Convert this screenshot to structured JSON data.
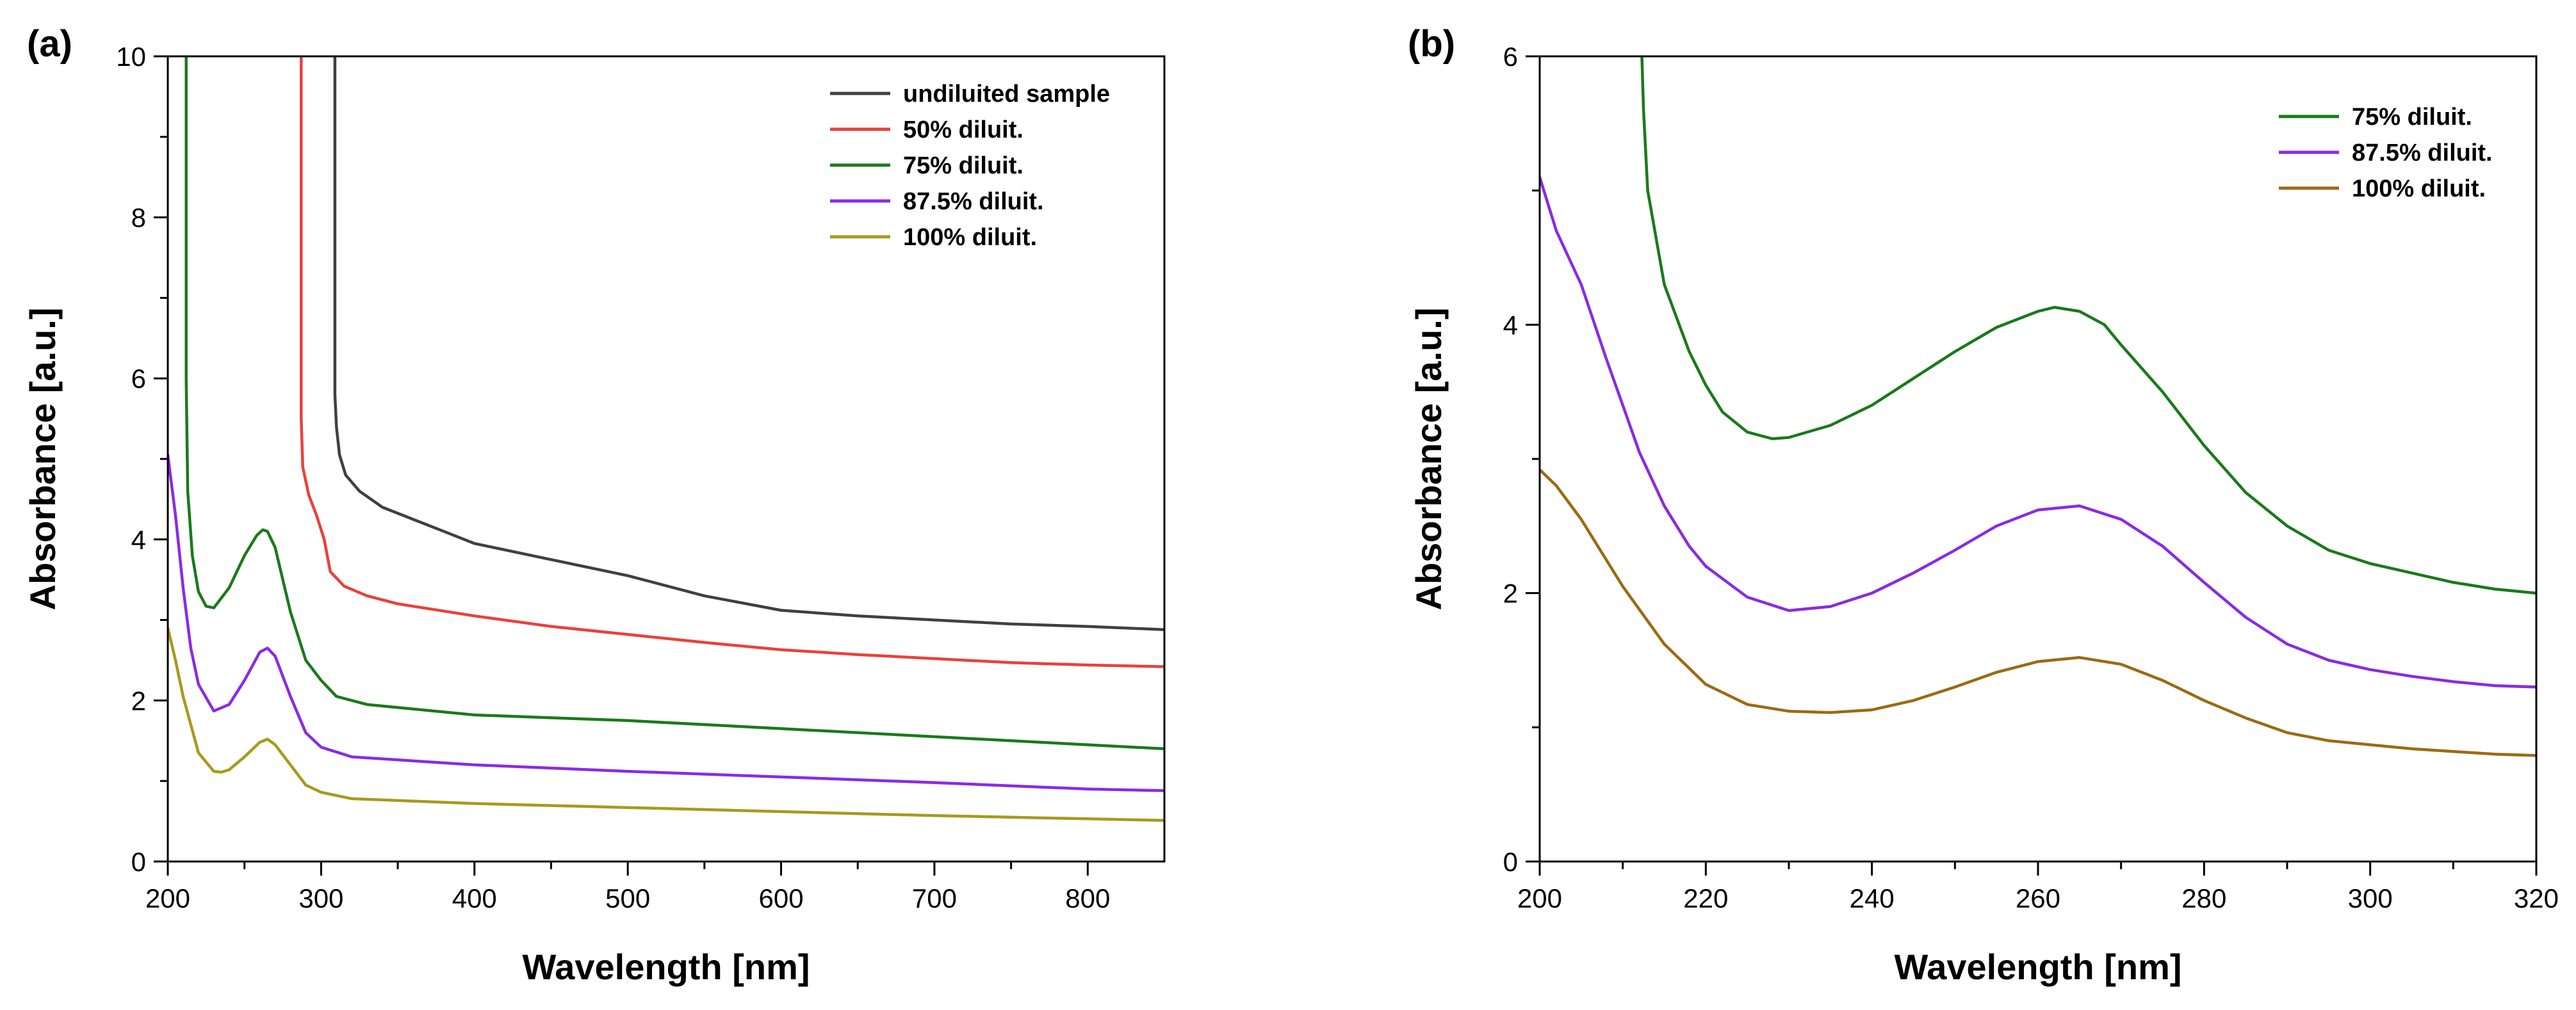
{
  "chart_data": [
    {
      "panel_label": "(a)",
      "type": "line",
      "xlabel": "Wavelength [nm]",
      "ylabel": "Absorbance [a.u.]",
      "xlim": [
        200,
        850
      ],
      "ylim": [
        0,
        10
      ],
      "xticks": [
        200,
        300,
        400,
        500,
        600,
        700,
        800
      ],
      "yticks": [
        0,
        2,
        4,
        6,
        8,
        10
      ],
      "legend_position": "top-right",
      "series": [
        {
          "name": "undiluited sample",
          "color": "#404040",
          "x": [
            309,
            309,
            310,
            312,
            316,
            325,
            340,
            360,
            380,
            400,
            450,
            500,
            550,
            600,
            650,
            700,
            750,
            800,
            850
          ],
          "y": [
            10,
            5.8,
            5.4,
            5.05,
            4.8,
            4.6,
            4.4,
            4.25,
            4.1,
            3.95,
            3.75,
            3.55,
            3.3,
            3.12,
            3.05,
            3.0,
            2.95,
            2.92,
            2.88
          ]
        },
        {
          "name": "50% diluit.",
          "color": "#e8413c",
          "x": [
            287,
            287,
            288,
            292,
            297,
            302,
            306,
            315,
            330,
            350,
            400,
            450,
            500,
            550,
            600,
            650,
            700,
            750,
            800,
            850
          ],
          "y": [
            10,
            5.5,
            4.9,
            4.55,
            4.3,
            4.0,
            3.6,
            3.42,
            3.3,
            3.2,
            3.05,
            2.92,
            2.82,
            2.72,
            2.63,
            2.57,
            2.52,
            2.47,
            2.44,
            2.42
          ]
        },
        {
          "name": "75% diluit.",
          "color": "#1a7a1a",
          "x": [
            212,
            212,
            213,
            216,
            220,
            225,
            230,
            240,
            250,
            258,
            262,
            265,
            270,
            280,
            290,
            300,
            310,
            330,
            400,
            500,
            600,
            700,
            800,
            850
          ],
          "y": [
            10,
            6.0,
            4.6,
            3.8,
            3.35,
            3.17,
            3.15,
            3.4,
            3.8,
            4.05,
            4.12,
            4.1,
            3.9,
            3.1,
            2.5,
            2.25,
            2.05,
            1.95,
            1.82,
            1.75,
            1.65,
            1.55,
            1.45,
            1.4
          ]
        },
        {
          "name": "87.5% diluit.",
          "color": "#8a2be2",
          "x": [
            200,
            205,
            210,
            215,
            220,
            230,
            240,
            250,
            260,
            265,
            270,
            280,
            290,
            300,
            320,
            400,
            500,
            600,
            700,
            800,
            850
          ],
          "y": [
            5.05,
            4.3,
            3.4,
            2.65,
            2.2,
            1.87,
            1.95,
            2.25,
            2.6,
            2.65,
            2.55,
            2.05,
            1.6,
            1.42,
            1.3,
            1.2,
            1.12,
            1.05,
            0.98,
            0.9,
            0.88
          ]
        },
        {
          "name": "100% diluit.",
          "color": "#a89a1c",
          "x": [
            200,
            205,
            210,
            220,
            230,
            235,
            240,
            250,
            260,
            265,
            270,
            280,
            290,
            300,
            320,
            400,
            500,
            600,
            700,
            800,
            850
          ],
          "y": [
            2.9,
            2.5,
            2.05,
            1.35,
            1.12,
            1.11,
            1.14,
            1.3,
            1.48,
            1.52,
            1.45,
            1.2,
            0.95,
            0.86,
            0.78,
            0.72,
            0.67,
            0.62,
            0.57,
            0.53,
            0.51
          ]
        }
      ]
    },
    {
      "panel_label": "(b)",
      "type": "line",
      "xlabel": "Wavelength [nm]",
      "ylabel": "Absorbance [a.u.]",
      "xlim": [
        200,
        320
      ],
      "ylim": [
        0,
        6
      ],
      "xticks": [
        200,
        220,
        240,
        260,
        280,
        300,
        320
      ],
      "yticks": [
        0,
        2,
        4,
        6
      ],
      "legend_position": "top-right",
      "series": [
        {
          "name": "75% diluit.",
          "color": "#1a7a1a",
          "x": [
            212.3,
            212.5,
            213,
            215,
            218,
            220,
            222,
            225,
            228,
            230,
            235,
            240,
            245,
            250,
            255,
            260,
            262,
            265,
            268,
            270,
            275,
            280,
            285,
            290,
            295,
            300,
            305,
            310,
            315,
            320
          ],
          "y": [
            6.0,
            5.6,
            5.0,
            4.3,
            3.8,
            3.55,
            3.35,
            3.2,
            3.15,
            3.16,
            3.25,
            3.4,
            3.6,
            3.8,
            3.98,
            4.1,
            4.13,
            4.1,
            4.0,
            3.85,
            3.5,
            3.1,
            2.75,
            2.5,
            2.32,
            2.22,
            2.15,
            2.08,
            2.03,
            2.0
          ]
        },
        {
          "name": "87.5% diluit.",
          "color": "#8a2be2",
          "x": [
            200,
            202,
            205,
            208,
            210,
            212,
            215,
            218,
            220,
            225,
            230,
            235,
            240,
            245,
            250,
            255,
            260,
            265,
            270,
            275,
            280,
            285,
            290,
            295,
            300,
            305,
            310,
            315,
            320
          ],
          "y": [
            5.1,
            4.7,
            4.3,
            3.75,
            3.4,
            3.05,
            2.65,
            2.35,
            2.2,
            1.97,
            1.87,
            1.9,
            2.0,
            2.15,
            2.32,
            2.5,
            2.62,
            2.65,
            2.55,
            2.35,
            2.08,
            1.82,
            1.62,
            1.5,
            1.43,
            1.38,
            1.34,
            1.31,
            1.3
          ]
        },
        {
          "name": "100% diluit.",
          "color": "#9c6a12",
          "x": [
            200,
            202,
            205,
            208,
            210,
            215,
            220,
            225,
            230,
            235,
            240,
            245,
            250,
            255,
            260,
            265,
            270,
            275,
            280,
            285,
            290,
            295,
            300,
            305,
            310,
            315,
            320
          ],
          "y": [
            2.92,
            2.8,
            2.55,
            2.25,
            2.05,
            1.62,
            1.32,
            1.17,
            1.12,
            1.11,
            1.13,
            1.2,
            1.3,
            1.41,
            1.49,
            1.52,
            1.47,
            1.35,
            1.2,
            1.07,
            0.96,
            0.9,
            0.87,
            0.84,
            0.82,
            0.8,
            0.79
          ]
        }
      ]
    }
  ]
}
